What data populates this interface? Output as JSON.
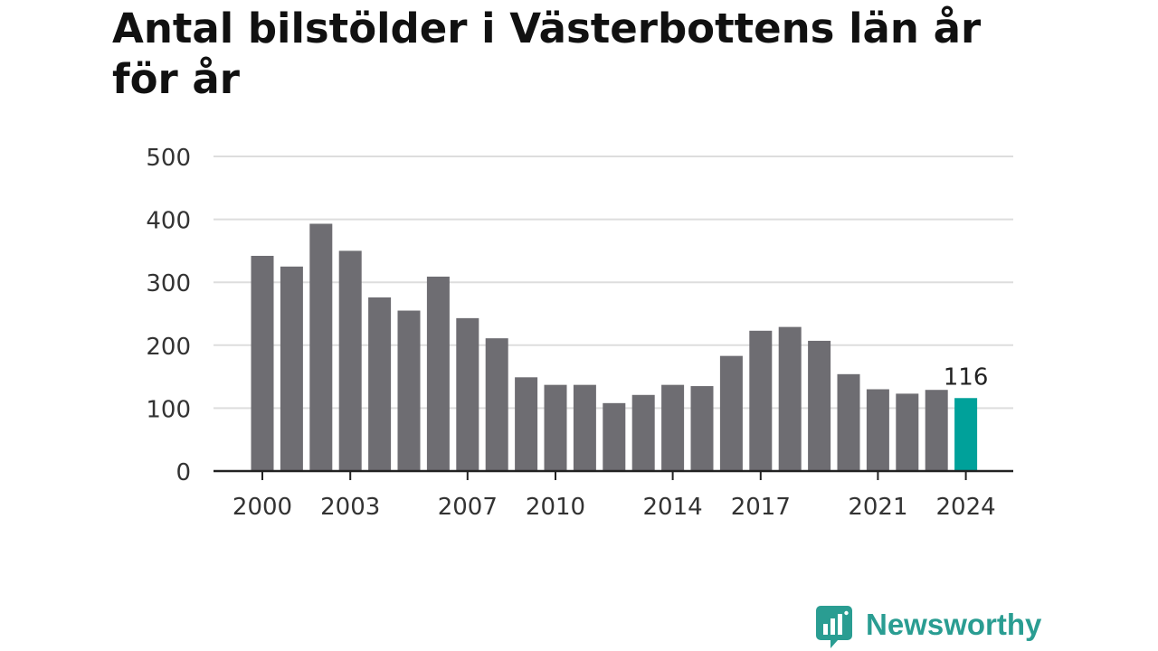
{
  "title": "Antal bilstölder i Västerbottens län år för år",
  "brand": {
    "name": "Newsworthy",
    "color": "#2a9d92",
    "icon": "bar-chart-speech-bubble-icon"
  },
  "chart_data": {
    "type": "bar",
    "title": "Antal bilstölder i Västerbottens län år för år",
    "xlabel": "",
    "ylabel": "",
    "ylim": [
      0,
      500
    ],
    "yticks": [
      0,
      100,
      200,
      300,
      400,
      500
    ],
    "grid": true,
    "categories": [
      "2000",
      "2001",
      "2002",
      "2003",
      "2004",
      "2005",
      "2006",
      "2007",
      "2008",
      "2009",
      "2010",
      "2011",
      "2012",
      "2013",
      "2014",
      "2015",
      "2016",
      "2017",
      "2018",
      "2019",
      "2020",
      "2021",
      "2022",
      "2023",
      "2024"
    ],
    "values": [
      342,
      325,
      393,
      350,
      276,
      255,
      309,
      243,
      211,
      149,
      137,
      137,
      108,
      121,
      137,
      135,
      183,
      223,
      229,
      207,
      154,
      130,
      123,
      129,
      116
    ],
    "xtick_labels": [
      "2000",
      "2003",
      "2007",
      "2010",
      "2014",
      "2017",
      "2021",
      "2024"
    ],
    "annotation": {
      "category": "2024",
      "text": "116"
    },
    "colors": {
      "bar": "#6e6d72",
      "highlight": "#00a19a",
      "grid": "#dddddd",
      "axis": "#222222",
      "text": "#333333"
    }
  }
}
